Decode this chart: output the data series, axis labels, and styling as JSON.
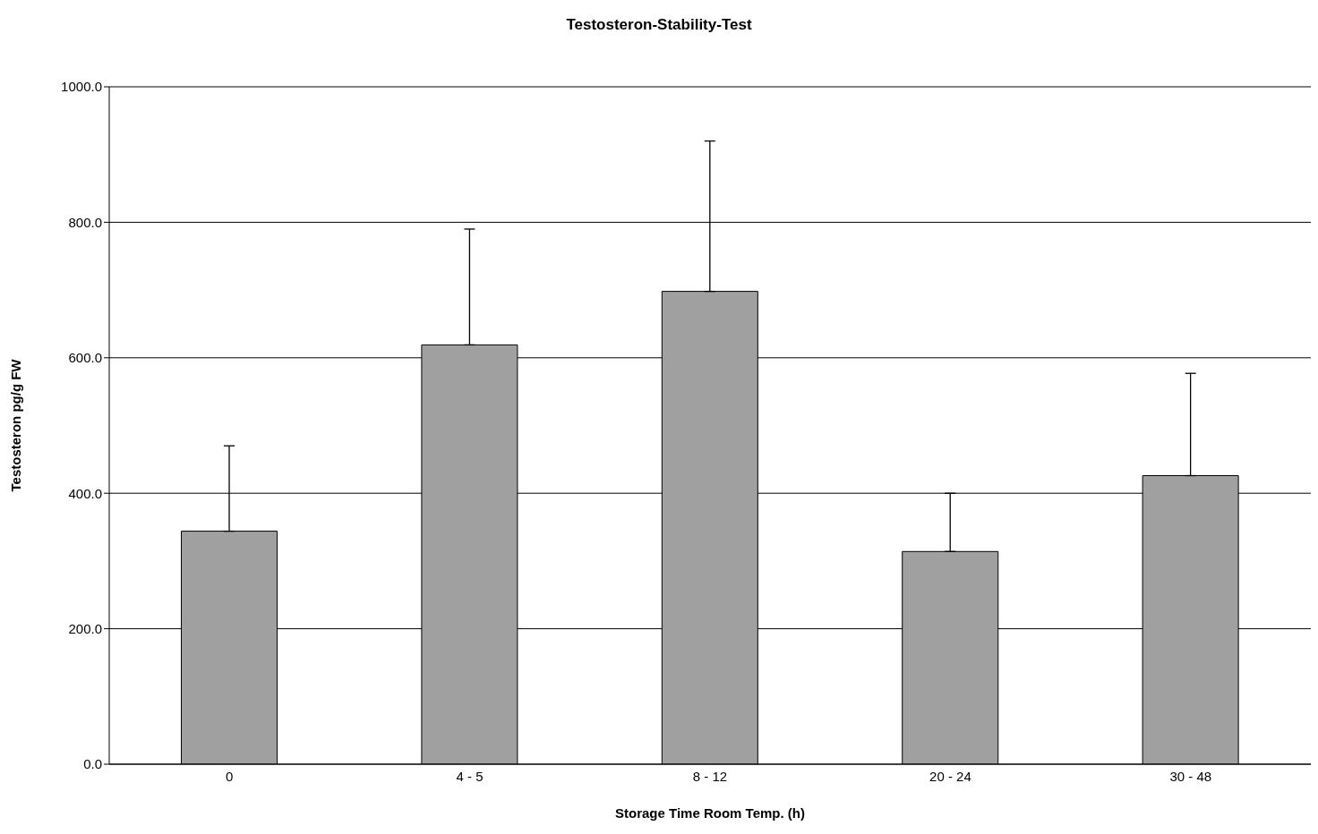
{
  "chart_data": {
    "type": "bar",
    "title": "Testosteron-Stability-Test",
    "xlabel": "Storage Time Room Temp. (h)",
    "ylabel": "Testosteron pg/g FW",
    "categories": [
      "0",
      "4 - 5",
      "8 - 12",
      "20 - 24",
      "30 - 48"
    ],
    "values": [
      344,
      619,
      698,
      314,
      426
    ],
    "errors": [
      [
        344,
        470
      ],
      [
        619,
        790
      ],
      [
        698,
        920
      ],
      [
        314,
        400
      ],
      [
        426,
        577
      ]
    ],
    "color": "#a0a0a0",
    "ylim": [
      0,
      1000
    ],
    "yticks": [
      {
        "value": 0,
        "label": "0.0"
      },
      {
        "value": 200,
        "label": "200.0"
      },
      {
        "value": 400,
        "label": "400.0"
      },
      {
        "value": 600,
        "label": "600.0"
      },
      {
        "value": 800,
        "label": "800.0"
      },
      {
        "value": 1000,
        "label": "1000.0"
      }
    ],
    "grid": "y",
    "legend": false
  }
}
